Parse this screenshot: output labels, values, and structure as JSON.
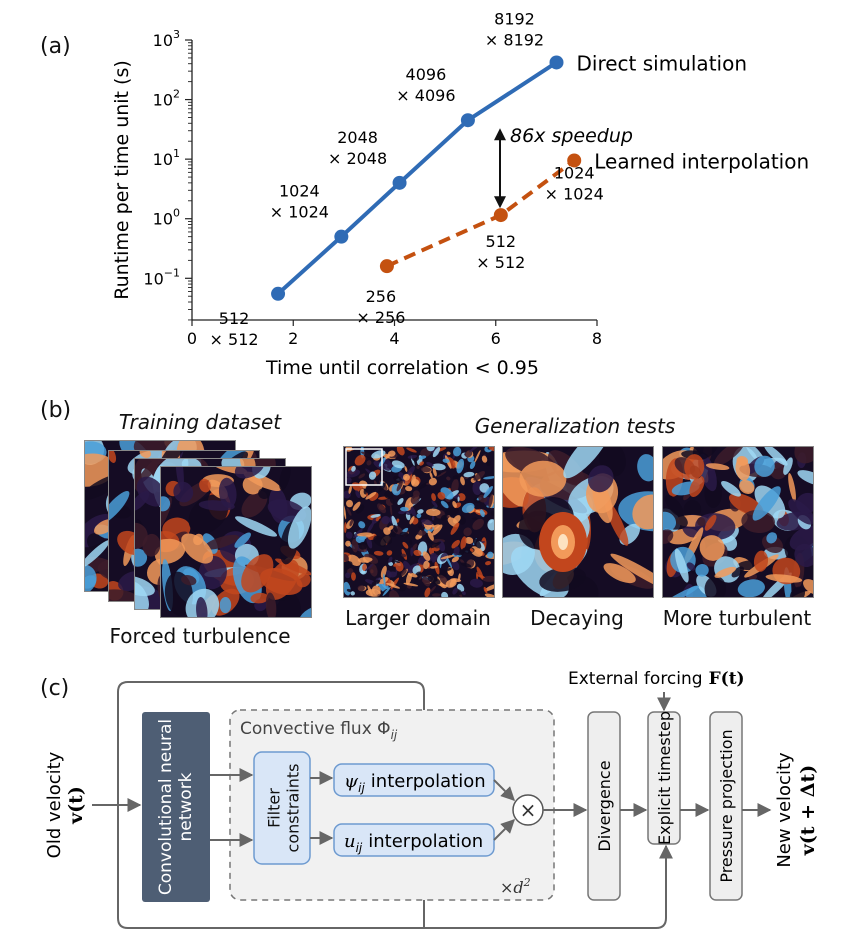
{
  "panels": {
    "a": "(a)",
    "b": "(b)",
    "c": "(c)"
  },
  "chart_data": {
    "type": "line",
    "xlabel": "Time until correlation < 0.95",
    "ylabel": "Runtime per time unit (s)",
    "xlim": [
      0,
      8
    ],
    "ylim_log10": [
      -1.7,
      3
    ],
    "y_scale": "log",
    "x_ticks": [
      "0",
      "2",
      "4",
      "6",
      "8"
    ],
    "y_ticks": [
      {
        "base": "10",
        "exp": "3",
        "log": 3
      },
      {
        "base": "10",
        "exp": "2",
        "log": 2
      },
      {
        "base": "10",
        "exp": "1",
        "log": 1
      },
      {
        "base": "10",
        "exp": "0",
        "log": 0
      },
      {
        "base": "10",
        "exp": "−1",
        "log": -1
      }
    ],
    "series": [
      {
        "name": "Direct simulation",
        "color": "#2f6bb5",
        "style": "solid",
        "points": [
          {
            "x": 1.7,
            "y": 0.055,
            "label1": "512",
            "label2": "× 512"
          },
          {
            "x": 2.95,
            "y": 0.5,
            "label1": "1024",
            "label2": "× 1024"
          },
          {
            "x": 4.1,
            "y": 4.0,
            "label1": "2048",
            "label2": "× 2048"
          },
          {
            "x": 5.45,
            "y": 45,
            "label1": "4096",
            "label2": "× 4096"
          },
          {
            "x": 7.2,
            "y": 420,
            "label1": "8192",
            "label2": "× 8192"
          }
        ]
      },
      {
        "name": "Learned interpolation",
        "color": "#c45110",
        "style": "dashed",
        "points": [
          {
            "x": 3.85,
            "y": 0.16,
            "label1": "256",
            "label2": "× 256"
          },
          {
            "x": 6.1,
            "y": 1.15,
            "label1": "512",
            "label2": "× 512"
          },
          {
            "x": 7.55,
            "y": 9.5,
            "label1": "1024",
            "label2": "× 1024"
          }
        ]
      }
    ],
    "annotation": "86x speedup"
  },
  "panel_b": {
    "training_title": "Training dataset",
    "training_caption": "Forced turbulence",
    "generalization_title": "Generalization tests",
    "tests": [
      {
        "caption": "Larger domain"
      },
      {
        "caption": "Decaying"
      },
      {
        "caption": "More turbulent"
      }
    ]
  },
  "panel_c": {
    "old_velocity": "Old velocity",
    "old_velocity_sym": "v(t)",
    "cnn": "Convolutional neural network",
    "convective_flux": "Convective flux Φ",
    "convective_flux_sub": "ij",
    "filter": "Filter constraints",
    "psi_sym": "ψ",
    "psi_sub": "ij",
    "psi_text": "interpolation",
    "u_sym": "u",
    "u_sub": "ij",
    "u_text": "interpolation",
    "times": "×",
    "times_d": "×d",
    "times_d_exp": "2",
    "divergence": "Divergence",
    "external_forcing": "External forcing",
    "external_forcing_sym": "F(t)",
    "explicit_timestep": "Explicit timestep",
    "pressure_projection": "Pressure projection",
    "new_velocity": "New velocity",
    "new_velocity_sym": "v(t + Δt)"
  }
}
